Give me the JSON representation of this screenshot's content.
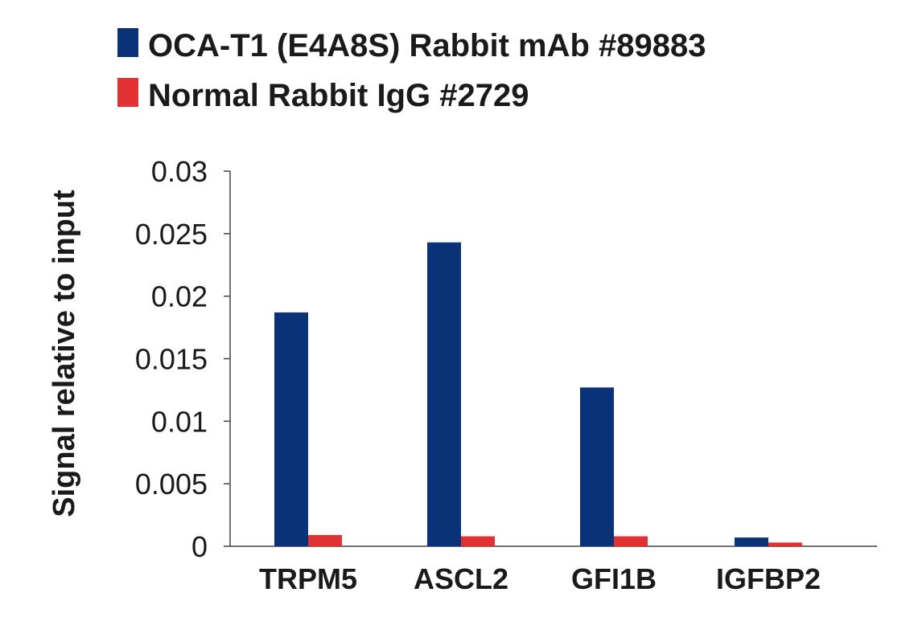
{
  "chart_data": {
    "type": "bar",
    "title": "",
    "xlabel": "",
    "ylabel": "Signal relative to input",
    "categories": [
      "TRPM5",
      "ASCL2",
      "GFI1B",
      "IGFBP2"
    ],
    "series": [
      {
        "name": "OCA-T1 (E4A8S) Rabbit mAb #89883",
        "color": "#0a3278",
        "values": [
          0.0187,
          0.0243,
          0.0127,
          0.0007
        ]
      },
      {
        "name": "Normal Rabbit IgG #2729",
        "color": "#e03232",
        "values": [
          0.0009,
          0.0008,
          0.0008,
          0.0003
        ]
      }
    ],
    "ylim": [
      0,
      0.03
    ],
    "yticks": [
      "0",
      "0.005",
      "0.01",
      "0.015",
      "0.02",
      "0.025",
      "0.03"
    ],
    "grid": false,
    "legend_position": "top-left"
  }
}
